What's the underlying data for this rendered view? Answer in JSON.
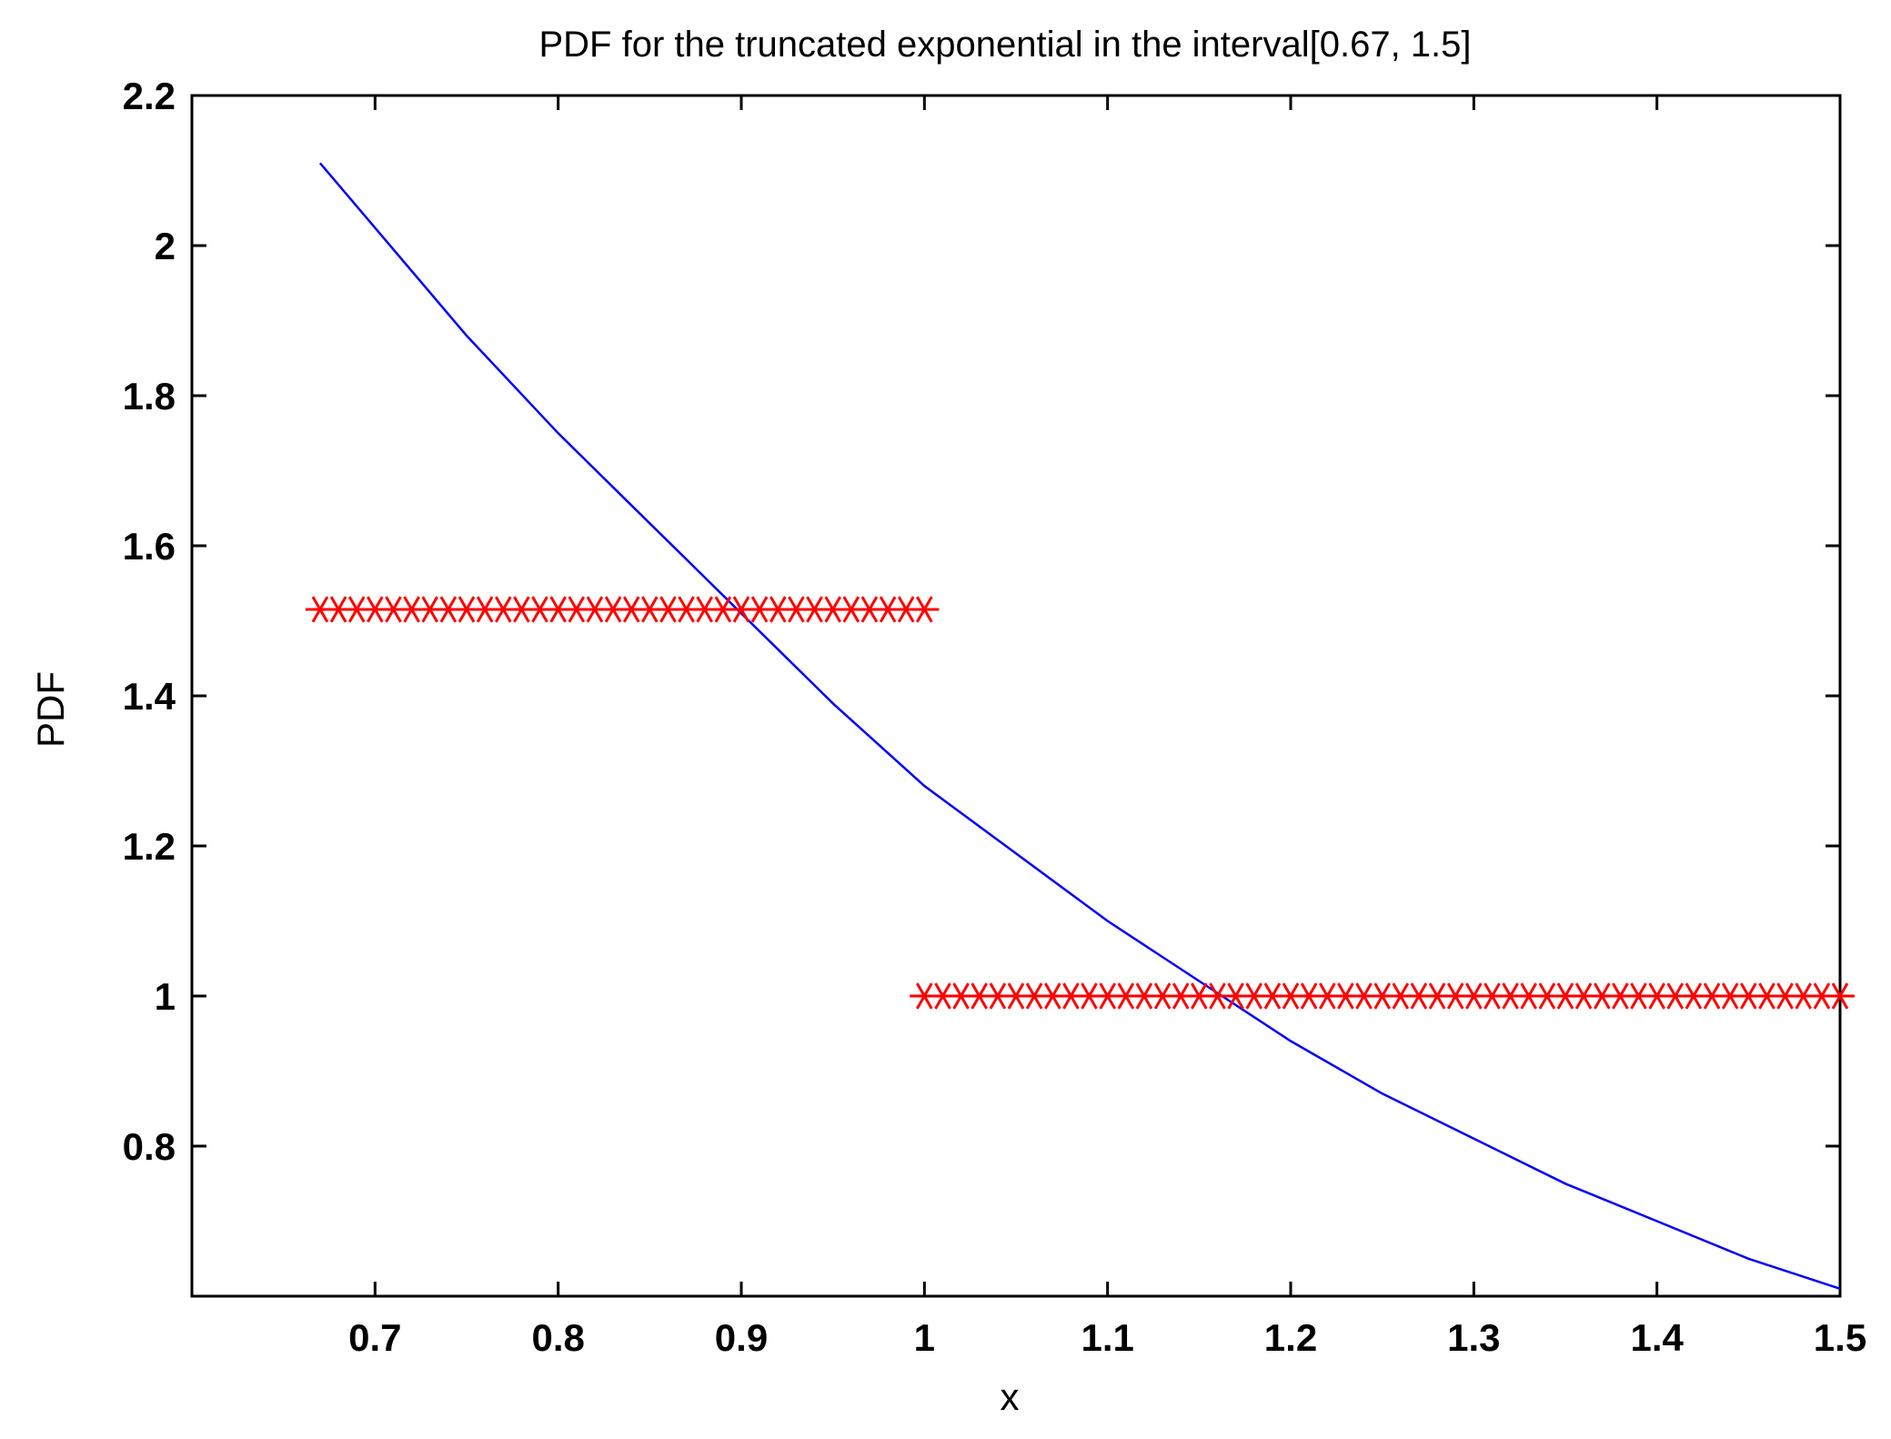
{
  "chart_data": {
    "type": "line",
    "title": "PDF for the truncated exponential in the interval[0.67, 1.5]",
    "xlabel": "x",
    "ylabel": "PDF",
    "xlim": [
      0.6,
      1.5
    ],
    "ylim": [
      0.6,
      2.2
    ],
    "xticks": [
      0.7,
      0.8,
      0.9,
      1,
      1.1,
      1.2,
      1.3,
      1.4,
      1.5
    ],
    "xtick_labels": [
      "0.7",
      "0.8",
      "0.9",
      "1",
      "1.1",
      "1.2",
      "1.3",
      "1.4",
      "1.5"
    ],
    "yticks": [
      0.8,
      1.0,
      1.2,
      1.4,
      1.6,
      1.8,
      2.0,
      2.2
    ],
    "ytick_labels": [
      "0.8",
      "1",
      "1.2",
      "1.4",
      "1.6",
      "1.8",
      "2",
      "2.2"
    ],
    "grid": false,
    "series": [
      {
        "type": "line",
        "color": "#0000ff",
        "x": [
          0.67,
          0.75,
          0.8,
          0.85,
          0.9,
          0.95,
          1.0,
          1.05,
          1.1,
          1.15,
          1.2,
          1.25,
          1.3,
          1.35,
          1.4,
          1.45,
          1.5
        ],
        "y": [
          2.11,
          1.88,
          1.75,
          1.63,
          1.51,
          1.39,
          1.28,
          1.19,
          1.1,
          1.02,
          0.94,
          0.87,
          0.81,
          0.75,
          0.7,
          0.65,
          0.61
        ]
      },
      {
        "type": "scatter",
        "marker": "*",
        "color": "#ff0000",
        "x_range": [
          0.67,
          1.0
        ],
        "count": 34,
        "y": 1.5152
      },
      {
        "type": "scatter",
        "marker": "*",
        "color": "#ff0000",
        "x_range": [
          1.0,
          1.5
        ],
        "count": 51,
        "y": 1.0
      }
    ]
  }
}
